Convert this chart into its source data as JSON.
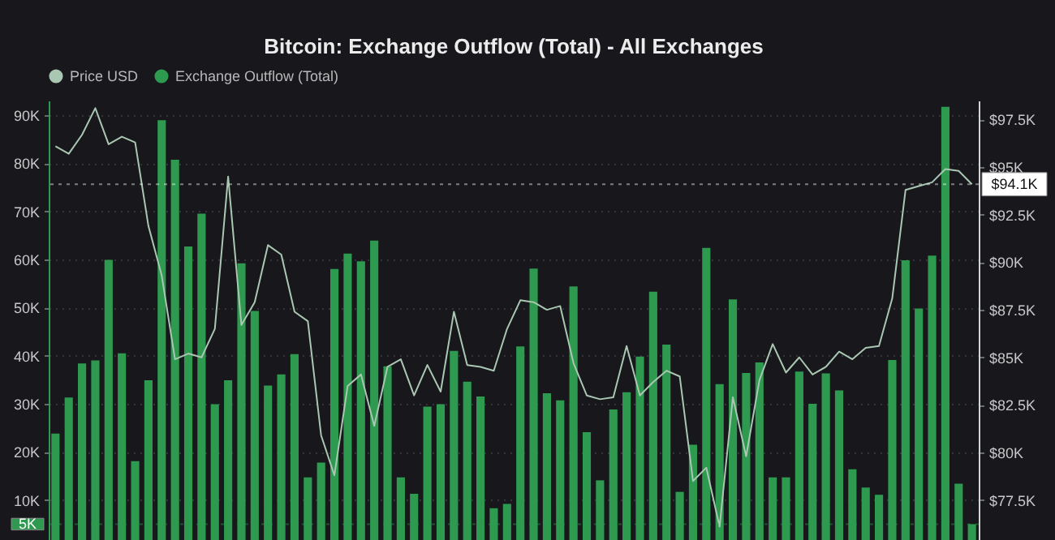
{
  "chart_data": {
    "type": "bar",
    "title": "Bitcoin: Exchange Outflow (Total) - All Exchanges",
    "categories": [
      null,
      null,
      null,
      null,
      null,
      null,
      null,
      null,
      null,
      null,
      null,
      null,
      null,
      null,
      null,
      null,
      null,
      null,
      null,
      null,
      null,
      null,
      null,
      null,
      null,
      null,
      null,
      null,
      null,
      null,
      null,
      null,
      null,
      null,
      null,
      null,
      null,
      null,
      null,
      null,
      null,
      null,
      null,
      null,
      null,
      null,
      null,
      null,
      null,
      null,
      null,
      null,
      null,
      null,
      null,
      null,
      null,
      null,
      null,
      null,
      null,
      null,
      null,
      null,
      null,
      null,
      null,
      null,
      null,
      null
    ],
    "series": [
      {
        "name": "Price USD",
        "type": "line",
        "axis": "y2",
        "color": "#a9c7b2",
        "values": [
          96100,
          95700,
          96700,
          98100,
          96200,
          96600,
          96300,
          91900,
          89300,
          84900,
          85200,
          85000,
          86500,
          94500,
          86700,
          87900,
          90900,
          90400,
          87400,
          86900,
          80900,
          78800,
          83500,
          84100,
          81400,
          84500,
          84900,
          83000,
          84600,
          83200,
          87400,
          84600,
          84500,
          84300,
          86500,
          88000,
          87900,
          87500,
          87700,
          84700,
          83000,
          82800,
          82900,
          85600,
          83000,
          83700,
          84300,
          84000,
          78500,
          79200,
          76100,
          82900,
          79800,
          83800,
          85700,
          84200,
          85000,
          84100,
          84500,
          85300,
          84900,
          85500,
          85600,
          88100,
          93800,
          94000,
          94200,
          94900,
          94800,
          94100
        ]
      },
      {
        "name": "Exchange Outflow (Total)",
        "color": "#2e9a4f",
        "values": [
          23800,
          31300,
          38400,
          39000,
          59900,
          40500,
          18100,
          34900,
          88900,
          80700,
          62700,
          69500,
          29900,
          34900,
          59200,
          49300,
          33800,
          36100,
          40300,
          14700,
          17800,
          58000,
          61200,
          59600,
          63900,
          37800,
          14700,
          11300,
          29400,
          29900,
          41000,
          34600,
          31500,
          8300,
          9200,
          41900,
          58100,
          32200,
          30700,
          54400,
          24100,
          14100,
          28800,
          32400,
          39800,
          53300,
          42300,
          11700,
          21500,
          62400,
          34100,
          51700,
          36400,
          38600,
          14700,
          14700,
          36700,
          30000,
          36300,
          32800,
          16400,
          12600,
          11100,
          39100,
          59800,
          49800,
          60800,
          91700,
          13400,
          5000
        ]
      }
    ],
    "ylim": [
      1700,
      93000
    ],
    "yticks": [
      {
        "value": 10000,
        "label": "10K"
      },
      {
        "value": 20000,
        "label": "20K"
      },
      {
        "value": 30000,
        "label": "30K"
      },
      {
        "value": 40000,
        "label": "40K"
      },
      {
        "value": 50000,
        "label": "50K"
      },
      {
        "value": 60000,
        "label": "60K"
      },
      {
        "value": 70000,
        "label": "70K"
      },
      {
        "value": 80000,
        "label": "80K"
      },
      {
        "value": 90000,
        "label": "90K"
      }
    ],
    "y2lim": [
      75400,
      98500
    ],
    "y2ticks": [
      {
        "value": 77500,
        "label": "$77.5K"
      },
      {
        "value": 80000,
        "label": "$80K"
      },
      {
        "value": 82500,
        "label": "$82.5K"
      },
      {
        "value": 85000,
        "label": "$85K"
      },
      {
        "value": 87500,
        "label": "$87.5K"
      },
      {
        "value": 90000,
        "label": "$90K"
      },
      {
        "value": 92500,
        "label": "$92.5K"
      },
      {
        "value": 95000,
        "label": "$95K"
      },
      {
        "value": 97500,
        "label": "$97.5K"
      }
    ],
    "ref_lines": [
      {
        "axis": "y",
        "value": 5000,
        "label": "5K",
        "color": "#2e9a4f"
      },
      {
        "axis": "y2",
        "value": 94100,
        "label": "$94.1K",
        "color": "#ffffff"
      }
    ],
    "grid": "y",
    "legend": "top"
  }
}
